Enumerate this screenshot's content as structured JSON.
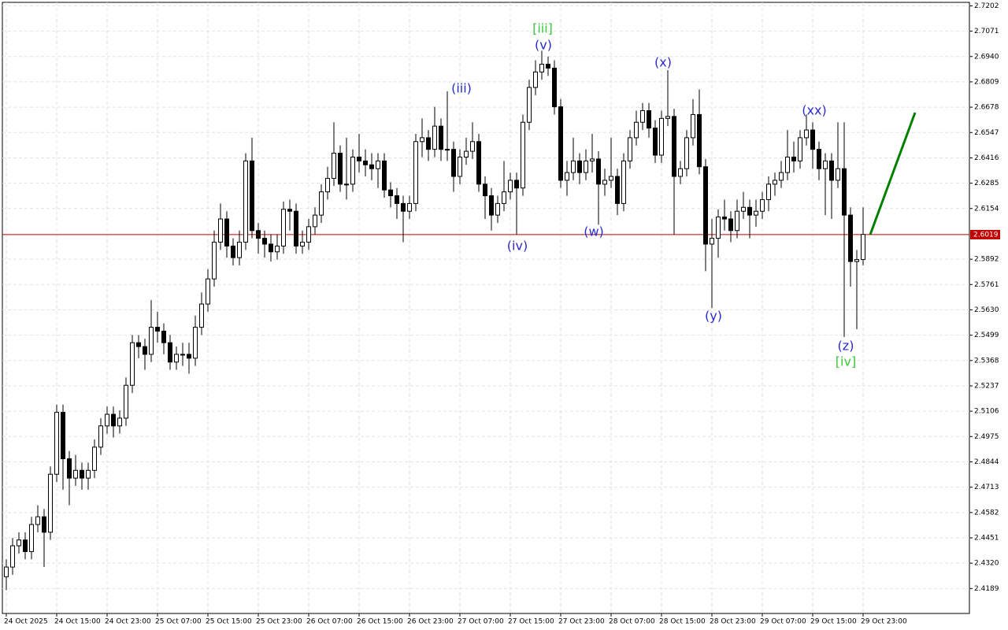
{
  "chart_data": {
    "type": "candlestick",
    "categories": [
      "24 Oct 2025",
      null,
      null,
      null,
      null,
      null,
      null,
      null,
      "24 Oct 15:00",
      null,
      null,
      null,
      null,
      null,
      null,
      null,
      "24 Oct 23:00",
      null,
      null,
      null,
      null,
      null,
      null,
      null,
      "25 Oct 07:00",
      null,
      null,
      null,
      null,
      null,
      null,
      null,
      "25 Oct 15:00",
      null,
      null,
      null,
      null,
      null,
      null,
      null,
      "25 Oct 23:00",
      null,
      null,
      null,
      null,
      null,
      null,
      null,
      "26 Oct 07:00",
      null,
      null,
      null,
      null,
      null,
      null,
      null,
      "26 Oct 15:00",
      null,
      null,
      null,
      null,
      null,
      null,
      null,
      "26 Oct 23:00",
      null,
      null,
      null,
      null,
      null,
      null,
      null,
      "27 Oct 07:00",
      null,
      null,
      null,
      null,
      null,
      null,
      null,
      "27 Oct 15:00",
      null,
      null,
      null,
      null,
      null,
      null,
      null,
      "27 Oct 23:00",
      null,
      null,
      null,
      null,
      null,
      null,
      null,
      "28 Oct 07:00",
      null,
      null,
      null,
      null,
      null,
      null,
      null,
      "28 Oct 15:00",
      null,
      null,
      null,
      null,
      null,
      null,
      null,
      "28 Oct 23:00",
      null,
      null,
      null,
      null,
      null,
      null,
      null,
      "29 Oct 07:00",
      null,
      null,
      null,
      null,
      null,
      null,
      null,
      "29 Oct 15:00",
      null,
      null,
      null,
      null,
      null,
      null,
      null,
      "29 Oct 23:00"
    ],
    "open": [
      2.425,
      2.43,
      2.441,
      2.444,
      2.438,
      2.452,
      2.456,
      2.448,
      2.478,
      2.51,
      2.486,
      2.476,
      2.48,
      2.476,
      2.48,
      2.492,
      2.503,
      2.509,
      2.503,
      2.507,
      2.524,
      2.546,
      2.544,
      2.54,
      2.554,
      2.552,
      2.546,
      2.536,
      2.54,
      2.54,
      2.538,
      2.554,
      2.566,
      2.579,
      2.598,
      2.61,
      2.596,
      2.59,
      2.598,
      2.64,
      2.604,
      2.6,
      2.597,
      2.593,
      2.596,
      2.615,
      2.614,
      2.596,
      2.598,
      2.606,
      2.612,
      2.624,
      2.631,
      2.644,
      2.628,
      2.628,
      2.642,
      2.64,
      2.638,
      2.636,
      2.64,
      2.625,
      2.622,
      2.618,
      2.614,
      2.618,
      2.65,
      2.652,
      2.646,
      2.658,
      2.646,
      2.646,
      2.632,
      2.642,
      2.645,
      2.65,
      2.628,
      2.622,
      2.612,
      2.618,
      2.624,
      2.63,
      2.626,
      2.66,
      2.678,
      2.686,
      2.69,
      2.688,
      2.668,
      2.63,
      2.634,
      2.64,
      2.634,
      2.64,
      2.641,
      2.628,
      2.63,
      2.632,
      2.618,
      2.64,
      2.652,
      2.66,
      2.666,
      2.657,
      2.643,
      2.662,
      2.663,
      2.632,
      2.636,
      2.652,
      2.664,
      2.637,
      2.597,
      2.6,
      2.611,
      2.61,
      2.604,
      2.614,
      2.616,
      2.612,
      2.614,
      2.62,
      2.628,
      2.63,
      2.634,
      2.642,
      2.64,
      2.652,
      2.656,
      2.646,
      2.636,
      2.64,
      2.63,
      2.636,
      2.612,
      2.588,
      2.589
    ],
    "high": [
      2.434,
      2.445,
      2.448,
      2.448,
      2.456,
      2.462,
      2.46,
      2.482,
      2.514,
      2.514,
      2.49,
      2.488,
      2.484,
      2.484,
      2.496,
      2.507,
      2.513,
      2.513,
      2.511,
      2.528,
      2.55,
      2.55,
      2.548,
      2.568,
      2.562,
      2.556,
      2.55,
      2.544,
      2.546,
      2.546,
      2.56,
      2.572,
      2.584,
      2.604,
      2.618,
      2.614,
      2.6,
      2.604,
      2.644,
      2.652,
      2.608,
      2.604,
      2.602,
      2.602,
      2.619,
      2.62,
      2.618,
      2.604,
      2.61,
      2.616,
      2.628,
      2.637,
      2.66,
      2.648,
      2.652,
      2.646,
      2.654,
      2.646,
      2.644,
      2.644,
      2.644,
      2.629,
      2.626,
      2.622,
      2.622,
      2.654,
      2.662,
      2.656,
      2.668,
      2.662,
      2.676,
      2.65,
      2.646,
      2.652,
      2.66,
      2.654,
      2.632,
      2.626,
      2.622,
      2.64,
      2.634,
      2.634,
      2.664,
      2.682,
      2.692,
      2.697,
      2.694,
      2.692,
      2.672,
      2.64,
      2.652,
      2.644,
      2.646,
      2.654,
      2.645,
      2.636,
      2.652,
      2.636,
      2.644,
      2.656,
      2.666,
      2.67,
      2.67,
      2.661,
      2.666,
      2.687,
      2.667,
      2.64,
      2.656,
      2.672,
      2.677,
      2.641,
      2.61,
      2.615,
      2.62,
      2.614,
      2.62,
      2.624,
      2.62,
      2.62,
      2.624,
      2.632,
      2.634,
      2.64,
      2.656,
      2.65,
      2.656,
      2.664,
      2.66,
      2.65,
      2.644,
      2.644,
      2.66,
      2.66,
      2.616,
      2.594,
      2.616
    ],
    "low": [
      2.418,
      2.426,
      2.437,
      2.434,
      2.434,
      2.448,
      2.43,
      2.444,
      2.474,
      2.47,
      2.462,
      2.472,
      2.47,
      2.47,
      2.476,
      2.488,
      2.499,
      2.497,
      2.499,
      2.503,
      2.52,
      2.538,
      2.532,
      2.536,
      2.546,
      2.54,
      2.532,
      2.532,
      2.534,
      2.53,
      2.534,
      2.55,
      2.562,
      2.575,
      2.594,
      2.59,
      2.586,
      2.586,
      2.594,
      2.6,
      2.592,
      2.59,
      2.588,
      2.589,
      2.592,
      2.604,
      2.592,
      2.592,
      2.594,
      2.602,
      2.608,
      2.62,
      2.627,
      2.624,
      2.62,
      2.624,
      2.634,
      2.632,
      2.63,
      2.626,
      2.621,
      2.616,
      2.61,
      2.598,
      2.61,
      2.614,
      2.642,
      2.64,
      2.642,
      2.64,
      2.64,
      2.624,
      2.628,
      2.638,
      2.641,
      2.624,
      2.61,
      2.604,
      2.608,
      2.614,
      2.62,
      2.602,
      2.622,
      2.656,
      2.674,
      2.682,
      2.684,
      2.664,
      2.626,
      2.622,
      2.63,
      2.628,
      2.63,
      2.634,
      2.607,
      2.622,
      2.626,
      2.612,
      2.614,
      2.636,
      2.648,
      2.656,
      2.652,
      2.639,
      2.639,
      2.658,
      2.602,
      2.628,
      2.632,
      2.648,
      2.633,
      2.583,
      2.564,
      2.59,
      2.604,
      2.598,
      2.6,
      2.61,
      2.6,
      2.606,
      2.61,
      2.614,
      2.622,
      2.626,
      2.63,
      2.634,
      2.636,
      2.648,
      2.636,
      2.63,
      2.612,
      2.61,
      2.626,
      2.549,
      2.575,
      2.553,
      2.586
    ],
    "close": [
      2.43,
      2.441,
      2.444,
      2.438,
      2.452,
      2.456,
      2.448,
      2.478,
      2.51,
      2.486,
      2.476,
      2.48,
      2.476,
      2.48,
      2.492,
      2.503,
      2.509,
      2.503,
      2.507,
      2.524,
      2.546,
      2.544,
      2.54,
      2.554,
      2.552,
      2.546,
      2.536,
      2.54,
      2.54,
      2.538,
      2.554,
      2.566,
      2.579,
      2.598,
      2.61,
      2.596,
      2.59,
      2.598,
      2.64,
      2.604,
      2.6,
      2.597,
      2.593,
      2.596,
      2.615,
      2.614,
      2.596,
      2.598,
      2.606,
      2.612,
      2.624,
      2.631,
      2.644,
      2.628,
      2.628,
      2.642,
      2.64,
      2.638,
      2.636,
      2.64,
      2.625,
      2.622,
      2.618,
      2.614,
      2.618,
      2.65,
      2.652,
      2.646,
      2.658,
      2.646,
      2.646,
      2.632,
      2.642,
      2.645,
      2.65,
      2.628,
      2.622,
      2.612,
      2.618,
      2.624,
      2.63,
      2.626,
      2.66,
      2.678,
      2.686,
      2.69,
      2.688,
      2.668,
      2.63,
      2.634,
      2.64,
      2.634,
      2.64,
      2.641,
      2.628,
      2.63,
      2.632,
      2.618,
      2.64,
      2.652,
      2.66,
      2.666,
      2.657,
      2.643,
      2.662,
      2.663,
      2.632,
      2.636,
      2.652,
      2.664,
      2.637,
      2.597,
      2.6,
      2.611,
      2.61,
      2.604,
      2.614,
      2.616,
      2.612,
      2.614,
      2.62,
      2.628,
      2.63,
      2.634,
      2.642,
      2.64,
      2.652,
      2.656,
      2.646,
      2.636,
      2.64,
      2.63,
      2.636,
      2.612,
      2.588,
      2.589,
      2.602
    ],
    "ylim": [
      2.406,
      2.722
    ],
    "yticks": [
      2.7202,
      2.7071,
      {
        "value": 2.694,
        "label": "2.6940"
      },
      2.6809,
      2.6678,
      2.6547,
      2.6416,
      2.6285,
      2.6154,
      2.5892,
      2.5761,
      {
        "value": 2.563,
        "label": "2.5630"
      },
      2.5499,
      2.5368,
      2.5237,
      2.5106,
      2.4975,
      2.4844,
      2.4713,
      2.4582,
      2.4451,
      {
        "value": 2.432,
        "label": "2.4320"
      },
      2.4189
    ],
    "grid": true,
    "current_price": {
      "value": 2.6019,
      "label": "2.6019",
      "color": "#c00000"
    },
    "up_color": "#ffffff",
    "down_color": "#000000",
    "annotations": [
      {
        "text": "[iii]",
        "color": "#3cc83c"
      },
      {
        "text": "(v)",
        "color": "#2a2acc"
      },
      {
        "text": "(iii)",
        "color": "#2a2acc"
      },
      {
        "text": "(iv)",
        "color": "#2a2acc"
      },
      {
        "text": "(w)",
        "color": "#2a2acc"
      },
      {
        "text": "(x)",
        "color": "#2a2acc"
      },
      {
        "text": "(y)",
        "color": "#2a2acc"
      },
      {
        "text": "(xx)",
        "color": "#2a2acc"
      },
      {
        "text": "(z)",
        "color": "#2a2acc"
      },
      {
        "text": "[iv]",
        "color": "#3cc83c"
      }
    ]
  }
}
